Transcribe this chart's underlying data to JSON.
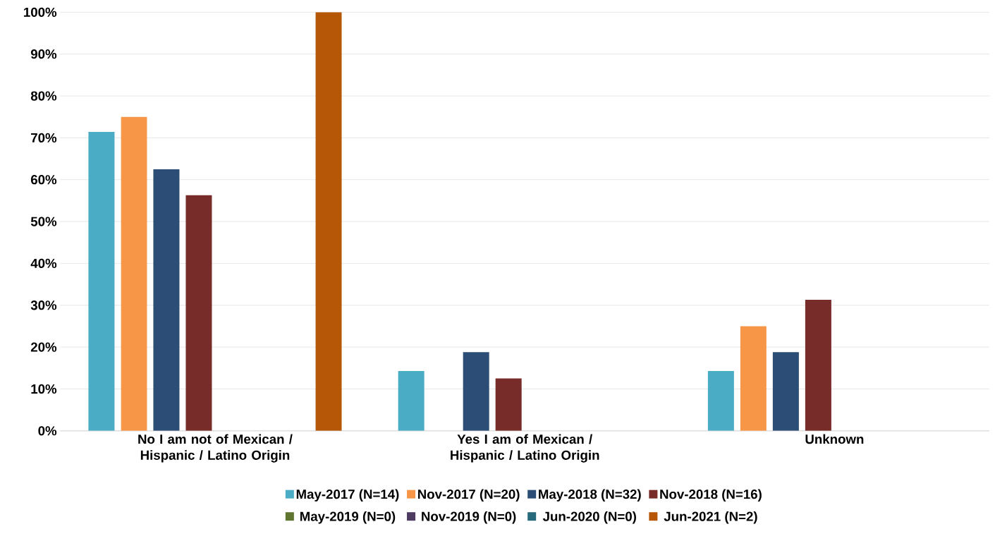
{
  "chart_data": {
    "type": "bar",
    "categories": [
      "No I am not of Mexican / Hispanic / Latino Origin",
      "Yes I am of Mexican / Hispanic / Latino Origin",
      "Unknown"
    ],
    "series": [
      {
        "name": "May-2017 (N=14)",
        "color": "#4bacc6",
        "values": [
          71.4,
          14.3,
          14.3
        ]
      },
      {
        "name": "Nov-2017 (N=20)",
        "color": "#f79646",
        "values": [
          75,
          0,
          25
        ]
      },
      {
        "name": "May-2018 (N=32)",
        "color": "#2c4d75",
        "values": [
          62.5,
          18.8,
          18.8
        ]
      },
      {
        "name": "Nov-2018 (N=16)",
        "color": "#772c2a",
        "values": [
          56.3,
          12.5,
          31.3
        ]
      },
      {
        "name": "May-2019 (N=0)",
        "color": "#5f7530",
        "values": [
          0,
          0,
          0
        ]
      },
      {
        "name": "Nov-2019 (N=0)",
        "color": "#4d3b62",
        "values": [
          0,
          0,
          0
        ]
      },
      {
        "name": "Jun-2020 (N=0)",
        "color": "#276a7c",
        "values": [
          0,
          0,
          0
        ]
      },
      {
        "name": "Jun-2021 (N=2)",
        "color": "#b65708",
        "values": [
          100,
          0,
          0
        ]
      }
    ],
    "ylim": [
      0,
      100
    ],
    "yticks": [
      {
        "value": 0,
        "label": "0%"
      },
      {
        "value": 10,
        "label": "10%"
      },
      {
        "value": 20,
        "label": "20%"
      },
      {
        "value": 30,
        "label": "30%"
      },
      {
        "value": 40,
        "label": "40%"
      },
      {
        "value": 50,
        "label": "50%"
      },
      {
        "value": 60,
        "label": "60%"
      },
      {
        "value": 70,
        "label": "70%"
      },
      {
        "value": 80,
        "label": "80%"
      },
      {
        "value": 90,
        "label": "90%"
      },
      {
        "value": 100,
        "label": "100%"
      }
    ],
    "grid": "y",
    "legend": "bottom"
  }
}
